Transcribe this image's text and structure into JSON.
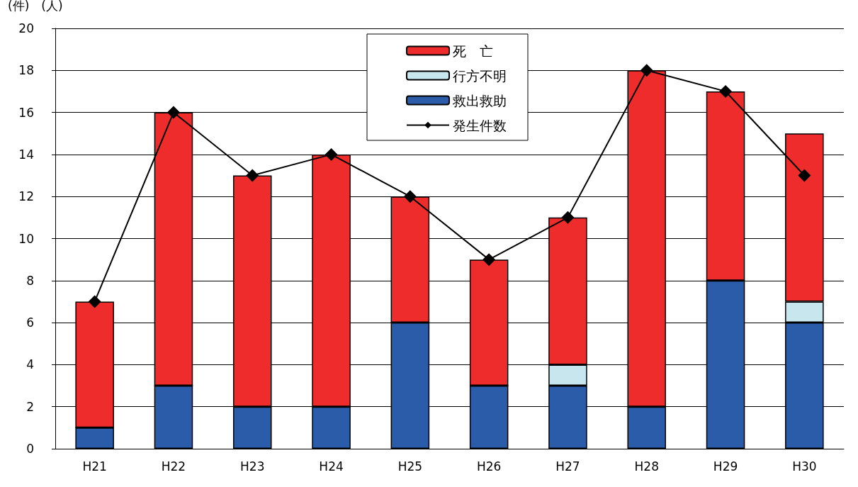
{
  "chart_data": {
    "type": "bar",
    "ylabel": "(件)　(人)",
    "categories": [
      "H21",
      "H22",
      "H23",
      "H24",
      "H25",
      "H26",
      "H27",
      "H28",
      "H29",
      "H30"
    ],
    "stacked": true,
    "ylim": [
      0,
      20
    ],
    "yticks": [
      0,
      2,
      4,
      6,
      8,
      10,
      12,
      14,
      16,
      18,
      20
    ],
    "grid": "y",
    "legend": "top",
    "marker": "diamond",
    "line_style": "solid",
    "series": [
      {
        "name": "救出救助",
        "color": "#2a5caa",
        "values": [
          1,
          3,
          2,
          2,
          6,
          3,
          3,
          2,
          8,
          6
        ]
      },
      {
        "name": "行方不明",
        "color": "#c8e6ee",
        "values": [
          0,
          0,
          0,
          0,
          0,
          0,
          1,
          0,
          0,
          1
        ]
      },
      {
        "name": "死　亡",
        "color": "#ee2c2c",
        "values": [
          6,
          13,
          11,
          12,
          6,
          6,
          7,
          16,
          9,
          8
        ]
      },
      {
        "name": "発生件数",
        "type": "line",
        "color": "#000000",
        "values": [
          7,
          16,
          13,
          14,
          12,
          9,
          11,
          18,
          17,
          13
        ]
      }
    ]
  }
}
